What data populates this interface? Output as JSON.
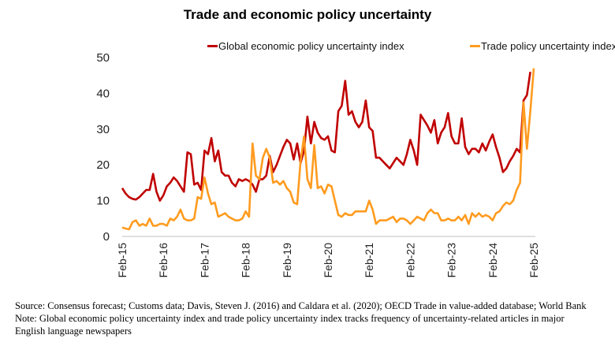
{
  "chart_data": {
    "type": "line",
    "title": "Trade and economic policy uncertainty",
    "xlabel": "",
    "ylabel": "",
    "ylim": [
      0,
      50
    ],
    "yticks": [
      "0",
      "10",
      "20",
      "30",
      "40",
      "50"
    ],
    "xticks": [
      "Feb-15",
      "Feb-16",
      "Feb-17",
      "Feb-18",
      "Feb-19",
      "Feb-20",
      "Feb-21",
      "Feb-22",
      "Feb-23",
      "Feb-24",
      "Feb-25"
    ],
    "x": [
      "2015-02",
      "2015-03",
      "2015-04",
      "2015-05",
      "2015-06",
      "2015-07",
      "2015-08",
      "2015-09",
      "2015-10",
      "2015-11",
      "2015-12",
      "2016-01",
      "2016-02",
      "2016-03",
      "2016-04",
      "2016-05",
      "2016-06",
      "2016-07",
      "2016-08",
      "2016-09",
      "2016-10",
      "2016-11",
      "2016-12",
      "2017-01",
      "2017-02",
      "2017-03",
      "2017-04",
      "2017-05",
      "2017-06",
      "2017-07",
      "2017-08",
      "2017-09",
      "2017-10",
      "2017-11",
      "2017-12",
      "2018-01",
      "2018-02",
      "2018-03",
      "2018-04",
      "2018-05",
      "2018-06",
      "2018-07",
      "2018-08",
      "2018-09",
      "2018-10",
      "2018-11",
      "2018-12",
      "2019-01",
      "2019-02",
      "2019-03",
      "2019-04",
      "2019-05",
      "2019-06",
      "2019-07",
      "2019-08",
      "2019-09",
      "2019-10",
      "2019-11",
      "2019-12",
      "2020-01",
      "2020-02",
      "2020-03",
      "2020-04",
      "2020-05",
      "2020-06",
      "2020-07",
      "2020-08",
      "2020-09",
      "2020-10",
      "2020-11",
      "2020-12",
      "2021-01",
      "2021-02",
      "2021-03",
      "2021-04",
      "2021-05",
      "2021-06",
      "2021-07",
      "2021-08",
      "2021-09",
      "2021-10",
      "2021-11",
      "2021-12",
      "2022-01",
      "2022-02",
      "2022-03",
      "2022-04",
      "2022-05",
      "2022-06",
      "2022-07",
      "2022-08",
      "2022-09",
      "2022-10",
      "2022-11",
      "2022-12",
      "2023-01",
      "2023-02",
      "2023-03",
      "2023-04",
      "2023-05",
      "2023-06",
      "2023-07",
      "2023-08",
      "2023-09",
      "2023-10",
      "2023-11",
      "2023-12",
      "2024-01",
      "2024-02",
      "2024-03",
      "2024-04",
      "2024-05",
      "2024-06",
      "2024-07",
      "2024-08",
      "2024-09",
      "2024-10",
      "2024-11",
      "2024-12",
      "2025-01",
      "2025-02"
    ],
    "series": [
      {
        "name": "Global economic policy uncertainty index",
        "color": "#C00000",
        "values": [
          13.5,
          12,
          11,
          10.5,
          10.3,
          11,
          12,
          13,
          13,
          17.5,
          12.5,
          10,
          11.5,
          14,
          15,
          16.5,
          15.5,
          14,
          12.5,
          23.5,
          23,
          14.5,
          15,
          13,
          24,
          23,
          27.5,
          21,
          24,
          18,
          17,
          17,
          15,
          14,
          16,
          15.5,
          16,
          15.5,
          14.5,
          12.5,
          16,
          16,
          17,
          22.5,
          18,
          20,
          22.5,
          25,
          27,
          26,
          21.5,
          26,
          20.5,
          24,
          33.5,
          26,
          32,
          29,
          27.5,
          27,
          28,
          24,
          23.5,
          35,
          36.5,
          43.5,
          34,
          35,
          32,
          30.5,
          32,
          38,
          30.5,
          29.5,
          22,
          22,
          21,
          20,
          19,
          20.5,
          22,
          21,
          20,
          23,
          27,
          24,
          20,
          34,
          32.5,
          31,
          29,
          32.5,
          26,
          29,
          30.5,
          34.5,
          28,
          26,
          26,
          33,
          25,
          23,
          24.5,
          24.5,
          23.5,
          26,
          24,
          26.5,
          28.5,
          25,
          22,
          18,
          19,
          21,
          22.5,
          24.5,
          23.5,
          38,
          39.5,
          46,
          null
        ]
      },
      {
        "name": "Trade policy uncertainty index",
        "color": "#FF9B1F",
        "values": [
          2.5,
          2.2,
          2,
          4,
          4.5,
          3,
          3.5,
          3,
          5,
          3,
          3,
          3.5,
          3.5,
          3,
          5,
          4.5,
          5.5,
          7.5,
          5,
          4.5,
          4.5,
          5,
          11,
          10.5,
          16.5,
          12,
          9,
          9.5,
          5.5,
          6,
          6.5,
          5.5,
          5,
          4.5,
          4.5,
          5,
          7,
          5.5,
          26,
          17,
          16,
          22,
          24.5,
          22,
          15,
          15.5,
          14.5,
          15.5,
          13.5,
          12.5,
          9.5,
          9,
          21,
          28,
          16,
          13.5,
          25.5,
          13.5,
          14,
          12,
          14.5,
          14,
          10,
          6,
          5.5,
          6.5,
          6,
          6,
          7,
          7,
          7,
          7,
          10,
          7.5,
          3.5,
          4.5,
          4.5,
          4.5,
          5,
          5.5,
          4,
          5,
          5,
          4.5,
          3.5,
          4.5,
          5.5,
          5,
          4.5,
          6.5,
          7.5,
          6.5,
          6.5,
          4.5,
          4.5,
          5,
          4.5,
          4.5,
          5.5,
          4.5,
          6,
          3.5,
          6.5,
          5.5,
          6.5,
          5.5,
          6,
          5.5,
          4.5,
          6.5,
          7,
          8.5,
          9.5,
          9,
          10,
          13,
          15,
          37.5,
          24.5,
          35,
          47
        ]
      }
    ],
    "grid": false,
    "legend": "top"
  },
  "notes": {
    "source": "Source: Consensus forecast; Customs data; Davis, Steven J. (2016) and Caldara et al. (2020); OECD Trade in value-added database; World Bank",
    "note_line1": "Note: Global economic policy uncertainty index and trade policy uncertainty index tracks frequency of uncertainty-related articles in major",
    "note_line2": "English language newspapers"
  }
}
